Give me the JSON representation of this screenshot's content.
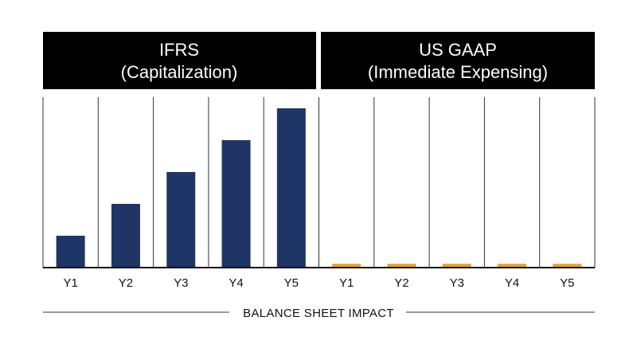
{
  "chart_data": {
    "type": "bar",
    "panels": [
      {
        "title_line1": "IFRS",
        "title_line2": "(Capitalization)",
        "categories": [
          "Y1",
          "Y2",
          "Y3",
          "Y4",
          "Y5"
        ],
        "values": [
          1,
          2,
          3,
          4,
          5
        ],
        "color": "#1f3566"
      },
      {
        "title_line1": "US GAAP",
        "title_line2": "(Immediate Expensing)",
        "categories": [
          "Y1",
          "Y2",
          "Y3",
          "Y4",
          "Y5"
        ],
        "values": [
          0.12,
          0.12,
          0.12,
          0.12,
          0.12
        ],
        "color": "#e2a23a"
      }
    ],
    "xlabel": "BALANCE SHEET IMPACT",
    "ylim": [
      0,
      6
    ],
    "grid": "vertical-separators",
    "header_color": "#000000"
  }
}
